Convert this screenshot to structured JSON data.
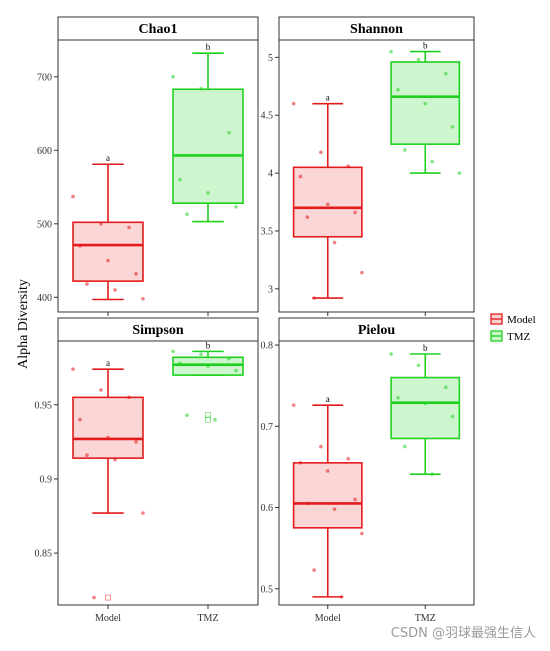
{
  "y_axis_label": "Alpha Diversity",
  "legend": [
    {
      "label": "Model",
      "color": "#e41a1c",
      "fill": "#f9cfcf"
    },
    {
      "label": "TMZ",
      "color": "#1fd11f",
      "fill": "#c6f5c6"
    }
  ],
  "watermark": "CSDN @羽球最强生信人",
  "chart_data": [
    {
      "type": "box",
      "title": "Chao1",
      "categories": [
        "Model",
        "TMZ"
      ],
      "ylim": [
        380,
        750
      ],
      "yticks": [
        400,
        500,
        600,
        700
      ],
      "series": [
        {
          "name": "Model",
          "min": 397,
          "q1": 422,
          "median": 471,
          "q3": 502,
          "max": 581,
          "letter": "a",
          "points": [
            537,
            500,
            495,
            470,
            450,
            432,
            418,
            410,
            398
          ],
          "outliers": []
        },
        {
          "name": "TMZ",
          "min": 503,
          "q1": 528,
          "median": 593,
          "q3": 683,
          "max": 732,
          "letter": "b",
          "points": [
            700,
            684,
            624,
            560,
            542,
            523,
            513
          ],
          "outliers": []
        }
      ]
    },
    {
      "type": "box",
      "title": "Shannon",
      "categories": [
        "Model",
        "TMZ"
      ],
      "ylim": [
        2.8,
        5.15
      ],
      "yticks": [
        3.0,
        3.5,
        4.0,
        4.5,
        5.0
      ],
      "series": [
        {
          "name": "Model",
          "min": 2.92,
          "q1": 3.45,
          "median": 3.7,
          "q3": 4.05,
          "max": 4.6,
          "letter": "a",
          "points": [
            4.6,
            4.18,
            4.06,
            3.97,
            3.73,
            3.66,
            3.62,
            3.4,
            3.14,
            2.92
          ],
          "outliers": []
        },
        {
          "name": "TMZ",
          "min": 4.0,
          "q1": 4.25,
          "median": 4.66,
          "q3": 4.96,
          "max": 5.05,
          "letter": "b",
          "points": [
            5.05,
            4.98,
            4.86,
            4.72,
            4.6,
            4.4,
            4.2,
            4.1,
            4.0
          ],
          "outliers": []
        }
      ]
    },
    {
      "type": "box",
      "title": "Simpson",
      "categories": [
        "Model",
        "TMZ"
      ],
      "ylim": [
        0.815,
        0.993
      ],
      "yticks": [
        0.85,
        0.9,
        0.95
      ],
      "series": [
        {
          "name": "Model",
          "min": 0.877,
          "q1": 0.914,
          "median": 0.927,
          "q3": 0.955,
          "max": 0.974,
          "letter": "a",
          "points": [
            0.974,
            0.96,
            0.955,
            0.94,
            0.928,
            0.925,
            0.916,
            0.913,
            0.877,
            0.82
          ],
          "outliers": [
            0.82
          ]
        },
        {
          "name": "TMZ",
          "min": 0.97,
          "q1": 0.97,
          "median": 0.977,
          "q3": 0.982,
          "max": 0.986,
          "letter": "b",
          "points": [
            0.986,
            0.984,
            0.981,
            0.978,
            0.976,
            0.973,
            0.943,
            0.94
          ],
          "outliers": [
            0.943,
            0.94
          ]
        }
      ]
    },
    {
      "type": "box",
      "title": "Pielou",
      "categories": [
        "Model",
        "TMZ"
      ],
      "ylim": [
        0.48,
        0.805
      ],
      "yticks": [
        0.5,
        0.6,
        0.7,
        0.8
      ],
      "series": [
        {
          "name": "Model",
          "min": 0.49,
          "q1": 0.575,
          "median": 0.605,
          "q3": 0.655,
          "max": 0.726,
          "letter": "a",
          "points": [
            0.726,
            0.675,
            0.66,
            0.655,
            0.645,
            0.61,
            0.605,
            0.598,
            0.568,
            0.523,
            0.49
          ],
          "outliers": []
        },
        {
          "name": "TMZ",
          "min": 0.641,
          "q1": 0.685,
          "median": 0.729,
          "q3": 0.76,
          "max": 0.789,
          "letter": "b",
          "points": [
            0.789,
            0.775,
            0.748,
            0.735,
            0.728,
            0.712,
            0.675,
            0.641
          ],
          "outliers": []
        }
      ]
    }
  ]
}
